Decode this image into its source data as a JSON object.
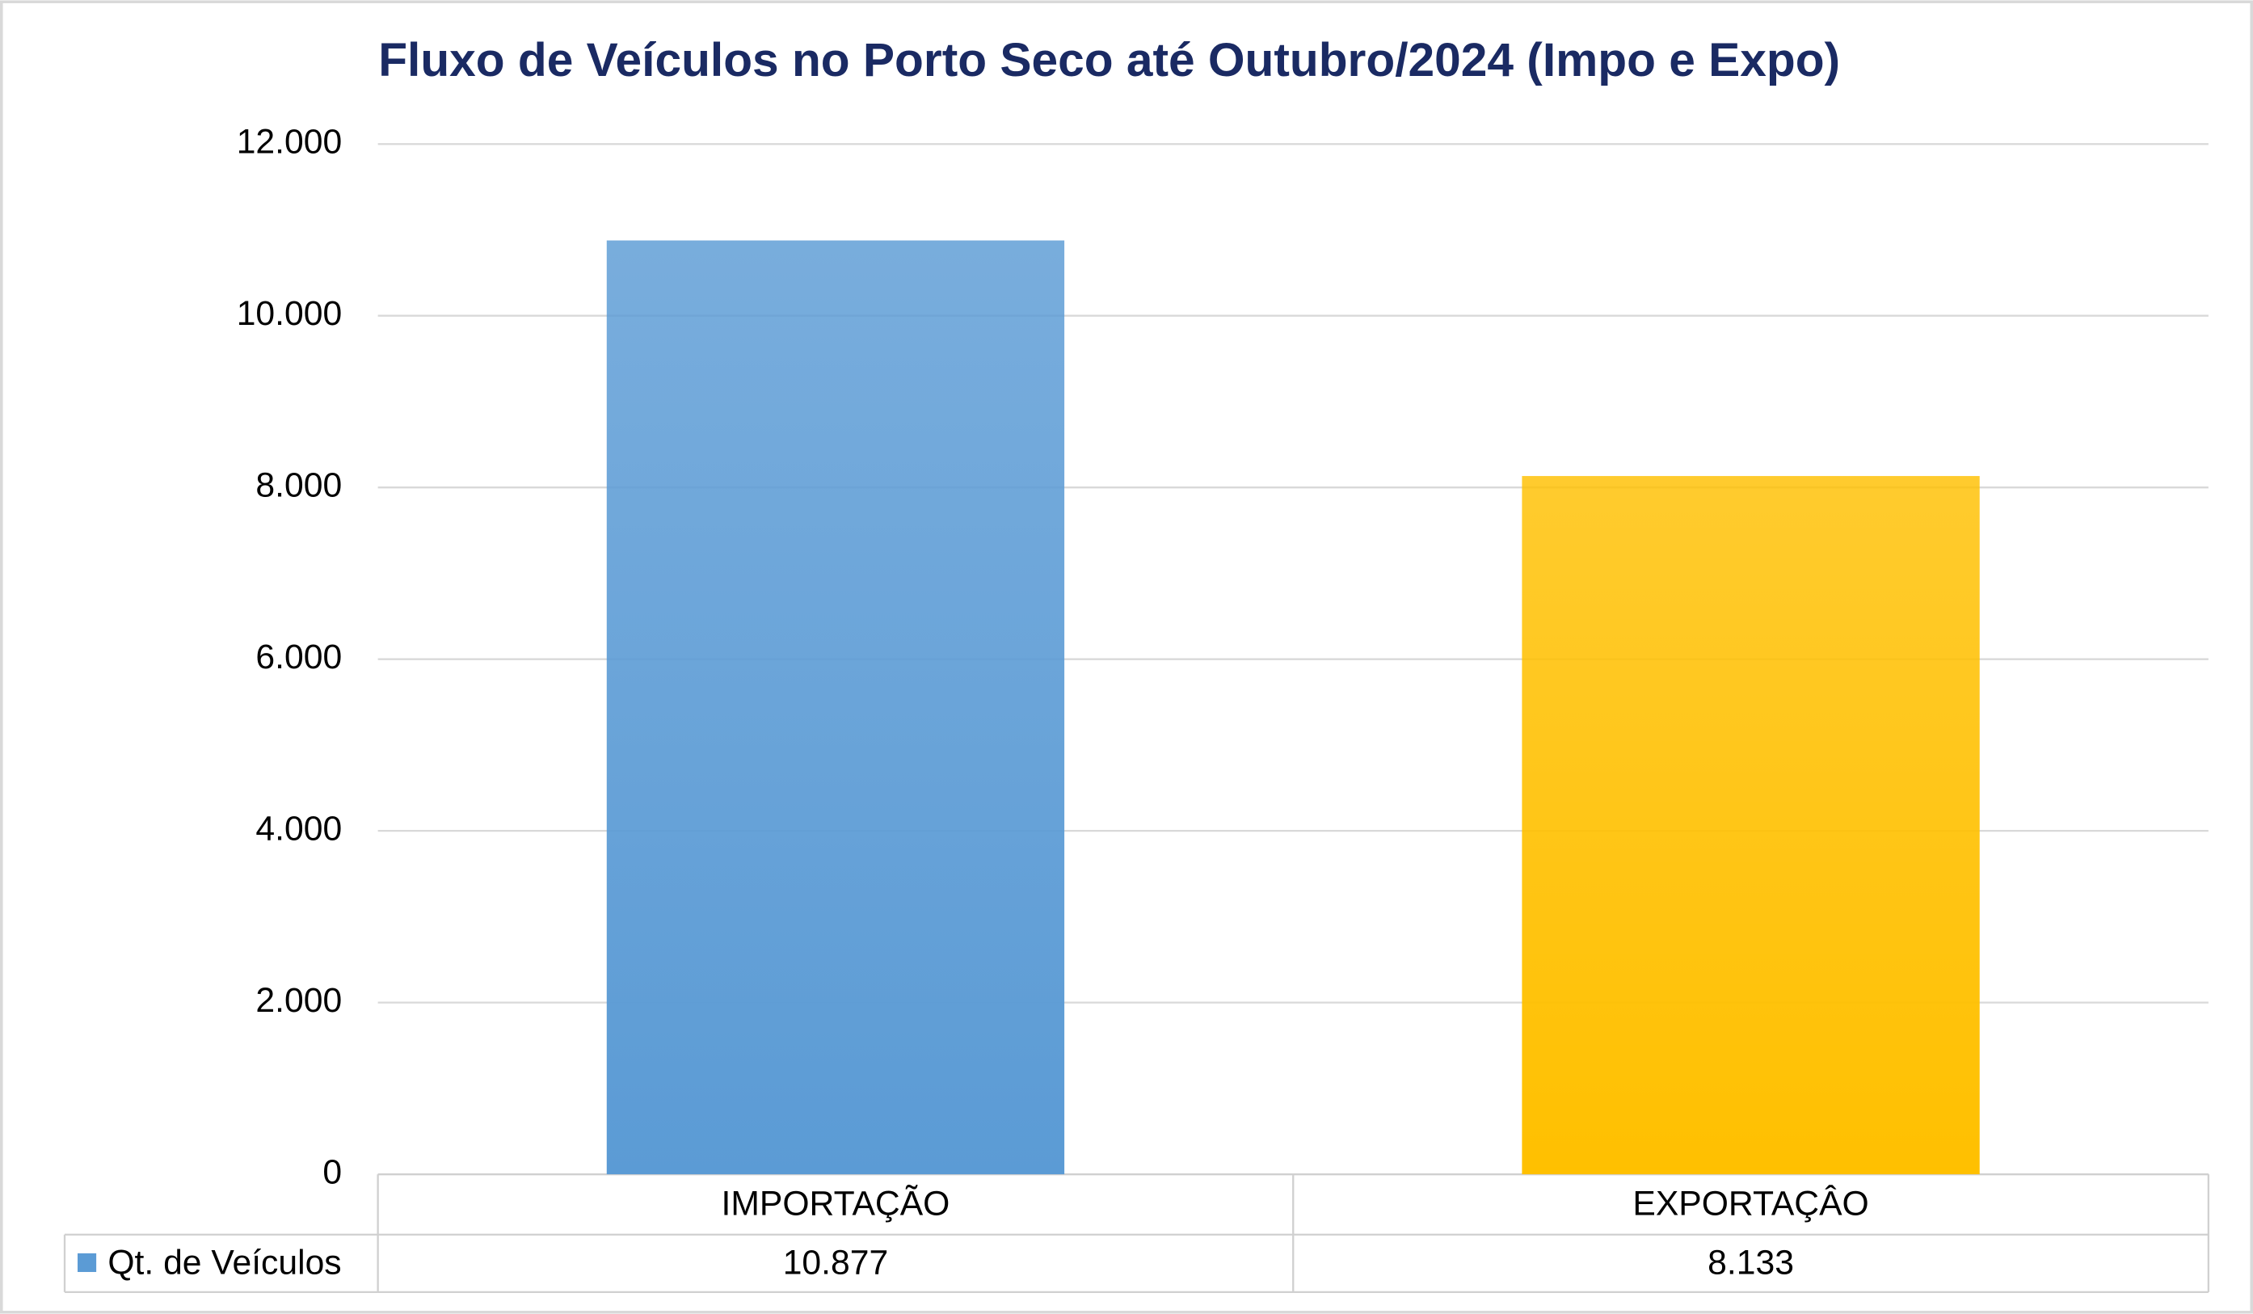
{
  "chart_data": {
    "type": "bar",
    "title": "Fluxo de Veículos no Porto Seco até Outubro/2024 (Impo e Expo)",
    "categories": [
      "IMPORTAÇÃO",
      "EXPORTAÇÂO"
    ],
    "series": [
      {
        "name": "Qt. de Veículos",
        "color": "#5b9bd5",
        "colors": [
          "#5b9bd5",
          "#ffc000"
        ],
        "values": [
          10877,
          8133
        ],
        "value_labels": [
          "10.877",
          "8.133"
        ]
      }
    ],
    "ylim": [
      0,
      12000
    ],
    "yticks": [
      0,
      {
        "value": 2000,
        "label": "2.000"
      },
      {
        "value": 4000,
        "label": "4.000"
      },
      {
        "value": 6000,
        "label": "6.000"
      },
      {
        "value": 8000,
        "label": "8.000"
      },
      {
        "value": 10000,
        "label": "10.000"
      },
      {
        "value": 12000,
        "label": "12.000"
      }
    ],
    "grid": true
  }
}
